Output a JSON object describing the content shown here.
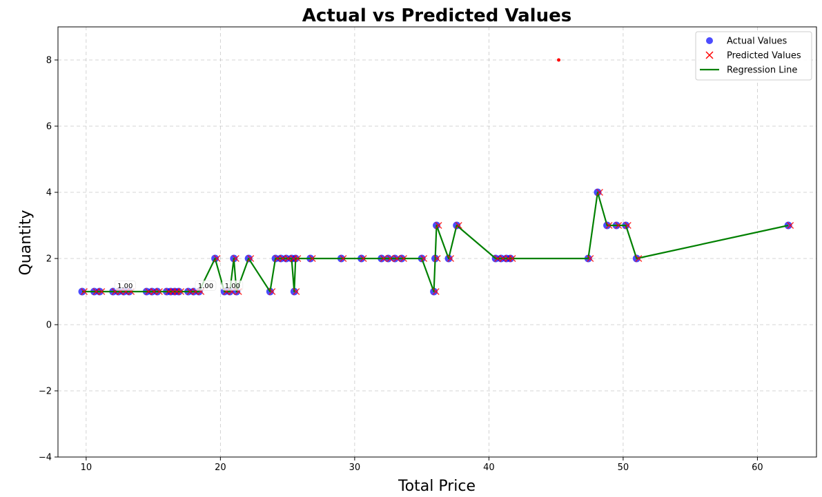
{
  "chart_data": {
    "type": "scatter",
    "title": "Actual vs Predicted Values",
    "xlabel": "Total Price",
    "ylabel": "Quantity",
    "xlim": [
      7.9,
      64.4
    ],
    "ylim": [
      -4,
      9
    ],
    "xticks": [
      10,
      20,
      30,
      40,
      50,
      60
    ],
    "yticks": [
      -4,
      -2,
      0,
      2,
      4,
      6,
      8
    ],
    "grid": true,
    "legend_position": "top-right",
    "colors": {
      "actual": "#0000ff",
      "predicted": "#ff0000",
      "line": "#008000"
    },
    "series": [
      {
        "name": "Actual Values",
        "marker": "circle",
        "x": [
          9.7,
          10.6,
          11.0,
          12.0,
          12.4,
          12.8,
          13.2,
          14.5,
          14.9,
          15.3,
          16.0,
          16.3,
          16.6,
          16.9,
          17.6,
          18.0,
          18.4,
          19.6,
          20.3,
          20.7,
          21.0,
          21.2,
          22.1,
          23.7,
          24.1,
          24.5,
          24.9,
          25.3,
          25.5,
          25.6,
          26.7,
          29.0,
          30.5,
          32.0,
          32.5,
          33.0,
          33.5,
          35.0,
          35.9,
          36.0,
          36.1,
          37.0,
          37.6,
          40.5,
          40.9,
          41.3,
          41.6,
          47.4,
          48.1,
          48.8,
          49.5,
          50.2,
          51.0,
          62.3
        ],
        "y": [
          1,
          1,
          1,
          1,
          1,
          1,
          1,
          1,
          1,
          1,
          1,
          1,
          1,
          1,
          1,
          1,
          1,
          2,
          1,
          1,
          2,
          1,
          2,
          1,
          2,
          2,
          2,
          2,
          1,
          2,
          2,
          2,
          2,
          2,
          2,
          2,
          2,
          2,
          1,
          2,
          3,
          2,
          3,
          2,
          2,
          2,
          2,
          2,
          4,
          3,
          3,
          3,
          2,
          3
        ]
      },
      {
        "name": "Predicted Values",
        "marker": "x",
        "x": [
          9.7,
          10.6,
          11.0,
          12.0,
          12.4,
          12.8,
          13.2,
          14.5,
          14.9,
          15.3,
          16.0,
          16.3,
          16.6,
          16.9,
          17.6,
          18.0,
          18.4,
          19.6,
          20.3,
          20.7,
          21.0,
          21.2,
          22.1,
          23.7,
          24.1,
          24.5,
          24.9,
          25.3,
          25.5,
          25.6,
          26.7,
          29.0,
          30.5,
          32.0,
          32.5,
          33.0,
          33.5,
          35.0,
          35.9,
          36.0,
          36.1,
          37.0,
          37.6,
          40.5,
          40.9,
          41.3,
          41.6,
          47.4,
          48.1,
          48.8,
          49.5,
          50.2,
          51.0,
          62.3,
          45.2
        ],
        "y": [
          1,
          1,
          1,
          1,
          1,
          1,
          1,
          1,
          1,
          1,
          1,
          1,
          1,
          1,
          1,
          1,
          1,
          2,
          1,
          1,
          2,
          1,
          2,
          1,
          2,
          2,
          2,
          2,
          1,
          2,
          2,
          2,
          2,
          2,
          2,
          2,
          2,
          2,
          1,
          2,
          3,
          2,
          3,
          2,
          2,
          2,
          2,
          2,
          4,
          3,
          3,
          3,
          2,
          3,
          8
        ]
      },
      {
        "name": "Regression Line",
        "marker": "line",
        "x": [
          9.7,
          10.6,
          11.0,
          12.0,
          12.4,
          12.8,
          13.2,
          14.5,
          14.9,
          15.3,
          16.0,
          16.3,
          16.6,
          16.9,
          17.6,
          18.0,
          18.4,
          19.6,
          20.3,
          20.7,
          21.0,
          21.2,
          22.1,
          23.7,
          24.1,
          24.5,
          24.9,
          25.3,
          25.5,
          25.6,
          26.7,
          29.0,
          30.5,
          32.0,
          32.5,
          33.0,
          33.5,
          35.0,
          35.9,
          36.0,
          36.1,
          37.0,
          37.6,
          40.5,
          40.9,
          41.3,
          41.6,
          47.4,
          48.1,
          48.8,
          49.5,
          50.2,
          51.0,
          62.3
        ],
        "y": [
          1,
          1,
          1,
          1,
          1,
          1,
          1,
          1,
          1,
          1,
          1,
          1,
          1,
          1,
          1,
          1,
          1,
          2,
          1,
          1,
          2,
          1,
          2,
          1,
          2,
          2,
          2,
          2,
          1,
          2,
          2,
          2,
          2,
          2,
          2,
          2,
          2,
          2,
          1,
          2,
          3,
          2,
          3,
          2,
          2,
          2,
          2,
          2,
          4,
          3,
          3,
          3,
          2,
          3
        ]
      }
    ],
    "annotations": [
      {
        "text": "1.00",
        "x": 12.9,
        "y": 1.12
      },
      {
        "text": "1.00",
        "x": 18.9,
        "y": 1.12
      },
      {
        "text": "1.00",
        "x": 20.9,
        "y": 1.12
      }
    ]
  }
}
